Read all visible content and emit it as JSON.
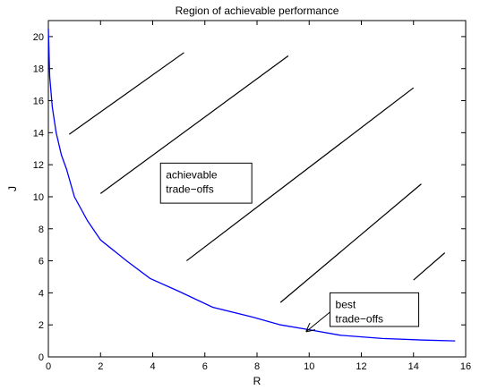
{
  "chart_data": {
    "type": "line",
    "title": "Region of achievable performance",
    "xlabel": "R",
    "ylabel": "J",
    "xlim": [
      0,
      16
    ],
    "ylim": [
      0,
      21
    ],
    "xticks": [
      0,
      2,
      4,
      6,
      8,
      10,
      12,
      14,
      16
    ],
    "yticks": [
      0,
      2,
      4,
      6,
      8,
      10,
      12,
      14,
      16,
      18,
      20
    ],
    "grid": false,
    "legend": "none",
    "series": [
      {
        "color": "#0000ff",
        "x": [
          0.0,
          0.05,
          0.15,
          0.3,
          0.5,
          0.7,
          1.0,
          1.5,
          2.0,
          3.0,
          3.9,
          5.0,
          6.3,
          7.8,
          8.9,
          10.0,
          11.2,
          12.8,
          14.4,
          15.6
        ],
        "y": [
          20.5,
          17.5,
          15.6,
          14.0,
          12.6,
          11.7,
          10.0,
          8.5,
          7.3,
          6.0,
          4.9,
          4.1,
          3.1,
          2.5,
          2.0,
          1.7,
          1.35,
          1.15,
          1.05,
          1.0
        ]
      }
    ],
    "hatch_lines": [
      {
        "x": [
          0.8,
          5.2
        ],
        "y": [
          13.9,
          19.0
        ]
      },
      {
        "x": [
          2.0,
          9.2
        ],
        "y": [
          10.2,
          18.8
        ]
      },
      {
        "x": [
          5.3,
          14.0
        ],
        "y": [
          6.0,
          16.8
        ]
      },
      {
        "x": [
          8.9,
          14.3
        ],
        "y": [
          3.4,
          10.8
        ]
      },
      {
        "x": [
          14.0,
          15.2
        ],
        "y": [
          4.8,
          6.5
        ]
      }
    ],
    "annotations": [
      {
        "lines": [
          "achievable",
          "trade−offs"
        ],
        "box": {
          "x0": 4.3,
          "y0": 9.6,
          "x1": 7.8,
          "y1": 12.1
        }
      },
      {
        "lines": [
          "best",
          "trade−offs"
        ],
        "box": {
          "x0": 10.8,
          "y0": 1.9,
          "x1": 14.2,
          "y1": 4.0
        },
        "arrow": {
          "from": [
            10.8,
            2.8
          ],
          "to": [
            9.9,
            1.6
          ]
        }
      }
    ]
  }
}
